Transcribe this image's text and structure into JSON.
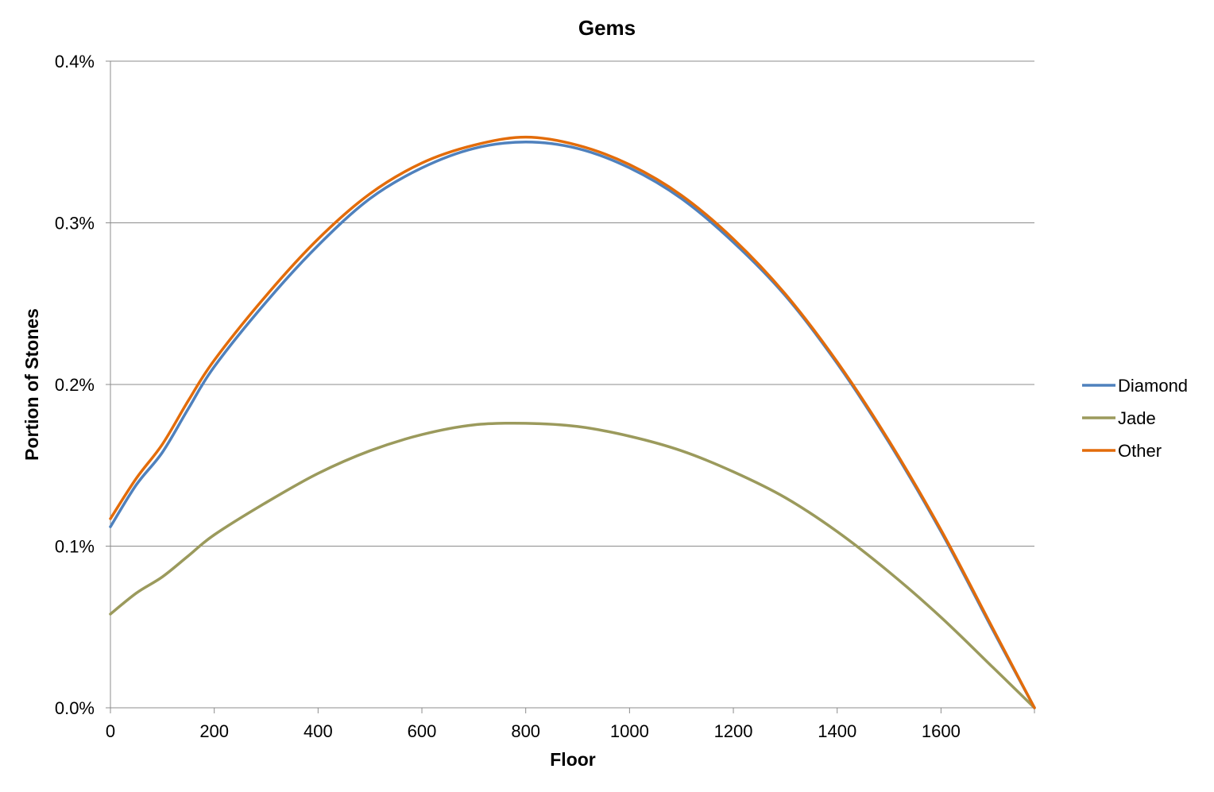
{
  "chart_data": {
    "type": "line",
    "title": "Gems",
    "xlabel": "Floor",
    "ylabel": "Portion of Stones",
    "xlim": [
      0,
      1780
    ],
    "ylim": [
      0,
      0.4
    ],
    "x_ticks": [
      0,
      200,
      400,
      600,
      800,
      1000,
      1200,
      1400,
      1600
    ],
    "x_tick_labels": [
      "0",
      "200",
      "400",
      "600",
      "800",
      "1000",
      "1200",
      "1400",
      "1600"
    ],
    "y_ticks": [
      0,
      0.1,
      0.2,
      0.3,
      0.4
    ],
    "y_tick_labels": [
      "0.0%",
      "0.1%",
      "0.2%",
      "0.3%",
      "0.4%"
    ],
    "grid": true,
    "legend_position": "right",
    "x": [
      0,
      50,
      100,
      150,
      200,
      300,
      400,
      500,
      600,
      700,
      800,
      900,
      1000,
      1100,
      1200,
      1300,
      1400,
      1500,
      1600,
      1700,
      1780
    ],
    "series": [
      {
        "name": "Diamond",
        "color": "#4f81bd",
        "values": [
          0.112,
          0.138,
          0.158,
          0.185,
          0.211,
          0.251,
          0.286,
          0.315,
          0.334,
          0.346,
          0.35,
          0.346,
          0.334,
          0.315,
          0.288,
          0.255,
          0.213,
          0.164,
          0.109,
          0.048,
          0.0
        ]
      },
      {
        "name": "Jade",
        "color": "#9b9a5c",
        "values": [
          0.058,
          0.071,
          0.081,
          0.094,
          0.107,
          0.127,
          0.145,
          0.159,
          0.169,
          0.175,
          0.176,
          0.174,
          0.168,
          0.159,
          0.146,
          0.13,
          0.109,
          0.084,
          0.056,
          0.025,
          0.0
        ]
      },
      {
        "name": "Other",
        "color": "#e36c0a",
        "values": [
          0.117,
          0.142,
          0.163,
          0.19,
          0.215,
          0.255,
          0.29,
          0.318,
          0.337,
          0.348,
          0.353,
          0.348,
          0.336,
          0.317,
          0.29,
          0.256,
          0.214,
          0.165,
          0.11,
          0.049,
          0.0
        ]
      }
    ]
  }
}
